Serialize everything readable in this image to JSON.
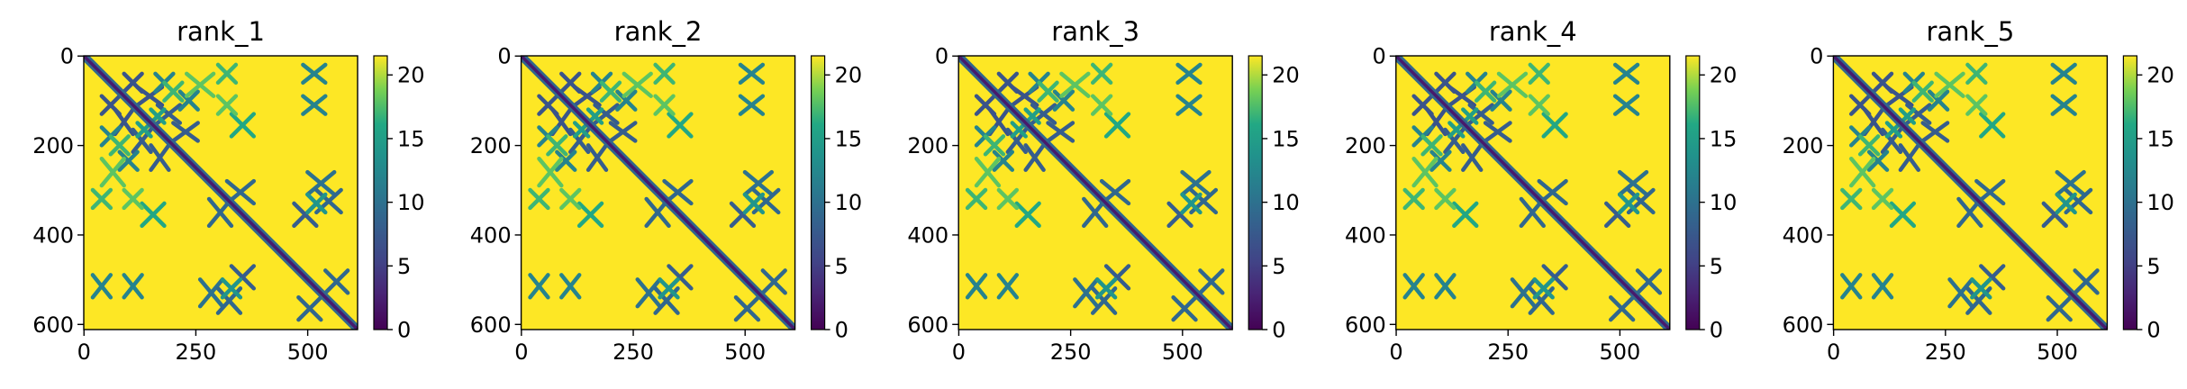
{
  "chart_data": {
    "type": "heatmap",
    "description_layout": "five side-by-side distance-matrix heatmaps, each with its own colorbar",
    "colormap": "viridis",
    "matrix_size": 612,
    "background_value": 21.5,
    "colorbar": {
      "min": 0,
      "max": 21.5,
      "ticks": [
        0,
        5,
        10,
        15,
        20
      ]
    },
    "x_ticks": [
      0,
      250,
      500
    ],
    "y_ticks": [
      0,
      200,
      400,
      600
    ],
    "xlim": [
      0,
      612
    ],
    "ylim": [
      612,
      0
    ],
    "grid": false,
    "contact_blocks": [
      {
        "i0": 90,
        "i1": 130,
        "j0": 40,
        "j1": 80,
        "value": 7
      },
      {
        "i0": 120,
        "i1": 175,
        "j0": 70,
        "j1": 110,
        "value": 7
      },
      {
        "i0": 165,
        "i1": 215,
        "j0": 110,
        "j1": 150,
        "value": 8
      },
      {
        "i0": 200,
        "i1": 255,
        "j0": 150,
        "j1": 190,
        "value": 8
      },
      {
        "i0": 160,
        "i1": 200,
        "j0": 40,
        "j1": 80,
        "value": 12
      },
      {
        "i0": 215,
        "i1": 255,
        "j0": 80,
        "j1": 120,
        "value": 12
      },
      {
        "i0": 120,
        "i1": 150,
        "j0": 150,
        "j1": 180,
        "value": 15
      },
      {
        "i0": 320,
        "i1": 380,
        "j0": 280,
        "j1": 330,
        "value": 9
      },
      {
        "i0": 330,
        "i1": 380,
        "j0": 130,
        "j1": 180,
        "value": 16
      },
      {
        "i0": 300,
        "i1": 340,
        "j0": 20,
        "j1": 60,
        "value": 17
      },
      {
        "i0": 470,
        "i1": 520,
        "j0": 330,
        "j1": 380,
        "value": 8
      },
      {
        "i0": 490,
        "i1": 540,
        "j0": 20,
        "j1": 60,
        "value": 12
      },
      {
        "i0": 490,
        "i1": 540,
        "j0": 90,
        "j1": 130,
        "value": 12
      },
      {
        "i0": 500,
        "i1": 560,
        "j0": 260,
        "j1": 310,
        "value": 10
      },
      {
        "i0": 520,
        "i1": 575,
        "j0": 300,
        "j1": 350,
        "value": 9
      },
      {
        "i0": 540,
        "i1": 590,
        "j0": 480,
        "j1": 530,
        "value": 9
      },
      {
        "i0": 60,
        "i1": 100,
        "j0": 180,
        "j1": 220,
        "value": 17
      },
      {
        "i0": 40,
        "i1": 90,
        "j0": 230,
        "j1": 290,
        "value": 18
      },
      {
        "i0": 90,
        "i1": 130,
        "j0": 300,
        "j1": 340,
        "value": 18
      },
      {
        "i0": 310,
        "i1": 350,
        "j0": 500,
        "j1": 540,
        "value": 14
      }
    ],
    "panels": [
      {
        "title": "rank_1"
      },
      {
        "title": "rank_2"
      },
      {
        "title": "rank_3"
      },
      {
        "title": "rank_4"
      },
      {
        "title": "rank_5"
      }
    ]
  }
}
